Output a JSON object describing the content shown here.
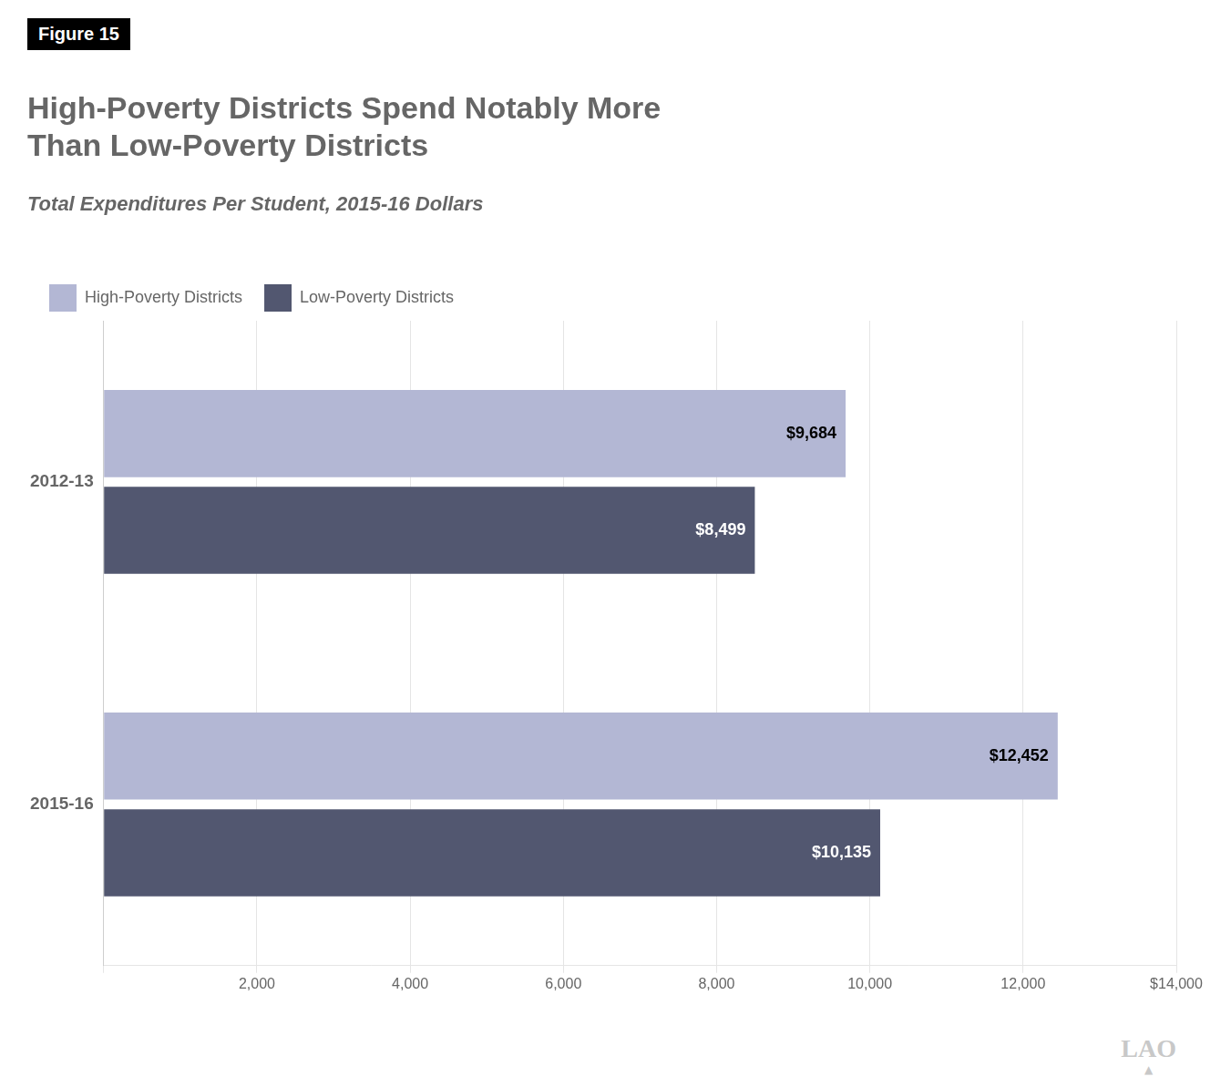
{
  "chart_data": {
    "type": "bar",
    "orientation": "horizontal",
    "title": "High-Poverty Districts Spend Notably More\nThan Low-Poverty Districts",
    "subtitle": "Total Expenditures Per Student, 2015-16 Dollars",
    "annotations": [
      "Figure 15",
      "LAO",
      "▲"
    ],
    "categories": [
      "2015-16",
      "2012-13"
    ],
    "series": [
      {
        "name": "High-Poverty Districts",
        "color": "#b3b7d4",
        "values": [
          12452,
          9684
        ],
        "value_labels": [
          "$12,452",
          "$9,684"
        ]
      },
      {
        "name": "Low-Poverty Districts",
        "color": "#525770",
        "values": [
          10135,
          8499
        ],
        "value_labels": [
          "$10,135",
          "$8,499"
        ]
      }
    ],
    "xlim": [
      0,
      14000
    ],
    "xticks": [
      {
        "value": 0,
        "label": ""
      },
      {
        "value": 2000,
        "label": "2,000"
      },
      {
        "value": 4000,
        "label": "4,000"
      },
      {
        "value": 6000,
        "label": "6,000"
      },
      {
        "value": 8000,
        "label": "8,000"
      },
      {
        "value": 10000,
        "label": "10,000"
      },
      {
        "value": 12000,
        "label": "12,000"
      },
      {
        "value": 14000,
        "label": "$14,000"
      }
    ],
    "grid": true,
    "legend": "top-left",
    "data_labels": true
  }
}
